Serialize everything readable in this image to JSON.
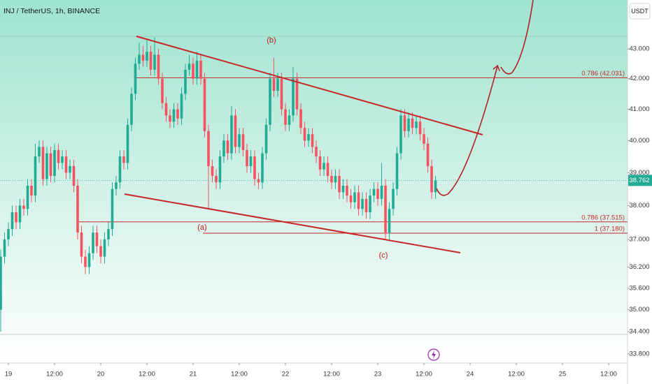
{
  "chart_data": {
    "type": "candlestick",
    "title": "INJ / TetherUS, 1h, BINANCE",
    "currency_button": "USDT",
    "log_scale": true,
    "up_color": "#22ab94",
    "down_color": "#f7525f",
    "x": [
      -2,
      -1,
      0,
      1,
      2,
      3,
      4,
      5,
      6,
      7,
      8,
      9,
      10,
      11,
      12,
      13,
      14,
      15,
      16,
      17,
      18,
      19,
      20,
      21,
      22,
      23,
      24,
      25,
      26,
      27,
      28,
      29,
      30,
      31,
      32,
      33,
      34,
      35,
      36,
      37,
      38,
      39,
      40,
      41,
      42,
      43,
      44,
      45,
      46,
      47,
      48,
      49,
      50,
      51,
      52,
      53,
      54,
      55,
      56,
      57,
      58,
      59,
      60,
      61,
      62,
      63,
      64,
      65,
      66,
      67,
      68,
      69,
      70,
      71,
      72,
      73,
      74,
      75,
      76,
      77,
      78,
      79,
      80,
      81,
      82,
      83,
      84,
      85,
      86,
      87,
      88,
      89,
      90,
      91,
      92,
      93,
      94,
      95,
      96,
      97,
      98,
      99,
      100,
      101,
      102,
      103,
      104,
      105,
      106,
      107,
      108,
      109,
      110,
      111
    ],
    "open": [
      35.0,
      36.5,
      37.0,
      37.3,
      37.8,
      37.5,
      38.0,
      37.9,
      38.6,
      38.3,
      39.5,
      39.8,
      38.8,
      39.6,
      38.9,
      39.7,
      39.3,
      39.5,
      39.0,
      39.2,
      38.6,
      37.2,
      36.5,
      36.2,
      36.6,
      37.2,
      36.8,
      36.5,
      37.0,
      37.3,
      38.5,
      38.7,
      39.5,
      39.3,
      40.5,
      41.5,
      42.5,
      42.8,
      42.6,
      42.9,
      42.3,
      42.8,
      42.0,
      41.2,
      40.8,
      40.6,
      41.0,
      40.7,
      41.5,
      42.3,
      42.5,
      42.0,
      42.6,
      42.0,
      40.3,
      39.2,
      38.9,
      38.7,
      39.5,
      40.0,
      39.6,
      40.8,
      39.8,
      40.2,
      39.7,
      39.2,
      39.5,
      38.8,
      38.7,
      39.6,
      40.5,
      42.0,
      41.6,
      42.0,
      41.0,
      40.5,
      40.8,
      42.0,
      41.0,
      40.4,
      40.0,
      40.2,
      39.8,
      39.5,
      39.1,
      39.3,
      38.9,
      38.7,
      38.9,
      38.4,
      38.6,
      38.3,
      38.1,
      38.4,
      37.9,
      38.2,
      37.8,
      38.3,
      38.5,
      38.2,
      38.6,
      37.2,
      37.9,
      38.5,
      39.6,
      40.8,
      40.3,
      40.7,
      40.4,
      40.6,
      40.2,
      39.9,
      39.2,
      38.4
    ],
    "high": [
      36.7,
      37.2,
      37.5,
      38.0,
      38.0,
      38.2,
      38.2,
      38.8,
      38.8,
      39.9,
      40.0,
      40.0,
      39.8,
      39.8,
      39.9,
      39.9,
      39.7,
      39.7,
      39.4,
      39.4,
      38.8,
      37.4,
      36.7,
      36.8,
      37.4,
      37.4,
      37.0,
      37.2,
      37.5,
      38.7,
      38.9,
      39.7,
      39.7,
      40.7,
      41.7,
      42.7,
      43.2,
      43.1,
      43.3,
      43.1,
      43.4,
      43.0,
      42.2,
      41.4,
      41.0,
      41.2,
      41.2,
      41.7,
      42.5,
      42.8,
      42.7,
      42.9,
      42.8,
      42.2,
      40.5,
      39.4,
      39.1,
      39.7,
      40.2,
      40.2,
      41.1,
      41.0,
      40.4,
      40.4,
      39.9,
      39.7,
      39.7,
      39.0,
      39.8,
      40.7,
      42.2,
      42.7,
      42.2,
      42.2,
      41.2,
      41.0,
      42.4,
      42.2,
      41.2,
      40.6,
      40.4,
      40.4,
      40.0,
      39.7,
      39.5,
      39.5,
      39.1,
      39.1,
      39.1,
      38.8,
      38.8,
      38.5,
      38.6,
      38.6,
      38.4,
      38.4,
      38.5,
      38.7,
      38.7,
      39.3,
      38.8,
      38.1,
      38.7,
      39.8,
      41.0,
      41.0,
      40.9,
      40.9,
      40.8,
      40.8,
      40.4,
      40.1,
      39.4,
      38.9
    ],
    "low": [
      34.4,
      36.3,
      36.8,
      37.1,
      37.3,
      37.3,
      37.7,
      37.7,
      38.1,
      38.1,
      39.3,
      38.6,
      38.6,
      38.7,
      38.7,
      39.1,
      39.1,
      38.8,
      38.8,
      38.4,
      37.0,
      36.3,
      36.0,
      36.0,
      36.4,
      36.6,
      36.3,
      36.3,
      36.8,
      37.1,
      38.3,
      38.5,
      39.1,
      39.1,
      40.3,
      41.3,
      42.3,
      42.4,
      42.4,
      42.1,
      42.1,
      41.8,
      41.0,
      40.6,
      40.4,
      40.4,
      40.5,
      40.5,
      41.3,
      42.1,
      41.8,
      41.8,
      41.8,
      40.1,
      37.9,
      38.7,
      38.5,
      38.5,
      39.3,
      39.4,
      39.4,
      39.6,
      39.6,
      39.5,
      39.0,
      39.0,
      38.6,
      38.5,
      38.5,
      39.4,
      40.3,
      41.4,
      41.4,
      40.8,
      40.3,
      40.3,
      40.6,
      40.8,
      40.2,
      39.8,
      39.8,
      39.6,
      39.3,
      38.9,
      38.9,
      38.7,
      38.5,
      38.5,
      38.2,
      38.2,
      38.1,
      37.9,
      37.9,
      37.7,
      37.7,
      37.6,
      37.6,
      38.1,
      38.0,
      38.0,
      37.0,
      37.0,
      37.7,
      38.3,
      39.4,
      40.1,
      40.1,
      40.2,
      40.2,
      40.0,
      39.7,
      39.0,
      38.2,
      38.2
    ],
    "close": [
      36.5,
      37.0,
      37.3,
      37.8,
      37.5,
      38.0,
      37.9,
      38.6,
      38.3,
      39.5,
      39.8,
      38.8,
      39.6,
      38.9,
      39.7,
      39.3,
      39.5,
      39.0,
      39.2,
      38.6,
      37.2,
      36.5,
      36.2,
      36.6,
      37.2,
      36.8,
      36.5,
      37.0,
      37.3,
      38.5,
      38.7,
      39.5,
      39.3,
      40.5,
      41.5,
      42.5,
      42.8,
      42.6,
      42.9,
      42.3,
      42.8,
      42.0,
      41.2,
      40.8,
      40.6,
      41.0,
      40.7,
      41.5,
      42.3,
      42.5,
      42.0,
      42.6,
      42.0,
      40.3,
      39.2,
      38.9,
      38.7,
      39.5,
      40.0,
      39.6,
      40.8,
      39.8,
      40.2,
      39.7,
      39.2,
      39.5,
      38.8,
      38.7,
      39.6,
      40.5,
      42.0,
      41.6,
      42.0,
      41.0,
      40.5,
      40.8,
      42.0,
      41.0,
      40.4,
      40.0,
      40.2,
      39.8,
      39.5,
      39.1,
      39.3,
      38.9,
      38.7,
      38.9,
      38.4,
      38.6,
      38.3,
      38.1,
      38.4,
      37.9,
      38.2,
      37.8,
      38.3,
      38.5,
      38.2,
      38.6,
      37.2,
      37.9,
      38.5,
      39.6,
      40.8,
      40.3,
      40.7,
      40.4,
      40.6,
      40.2,
      39.9,
      39.2,
      38.4,
      38.76
    ],
    "last_price": 38.762,
    "levels": [
      {
        "label": "0.786 (42.031)",
        "value": 42.031
      },
      {
        "label": "0.786 (37.515)",
        "value": 37.515
      },
      {
        "label": "1 (37.180)",
        "value": 37.18
      }
    ],
    "annotations": [
      "(a)",
      "(b)",
      "(c)"
    ],
    "xlim": [
      -2.18,
      160.9
    ],
    "xticks": [
      {
        "value": 0,
        "label": "19"
      },
      {
        "value": 12,
        "label": "12:00"
      },
      {
        "value": 24,
        "label": "20"
      },
      {
        "value": 36,
        "label": "12:00"
      },
      {
        "value": 48,
        "label": "21"
      },
      {
        "value": 60,
        "label": "12:00"
      },
      {
        "value": 72,
        "label": "22"
      },
      {
        "value": 84,
        "label": "12:00"
      },
      {
        "value": 96,
        "label": "23"
      },
      {
        "value": 108,
        "label": "12:00"
      },
      {
        "value": 120,
        "label": "24"
      },
      {
        "value": 132,
        "label": "12:00"
      },
      {
        "value": 144,
        "label": "25"
      },
      {
        "value": 156,
        "label": "12:00"
      }
    ],
    "ylim": [
      33.56,
      44.69
    ],
    "yticks": [
      {
        "value": 43,
        "label": "43.000"
      },
      {
        "value": 42,
        "label": "42.000"
      },
      {
        "value": 41,
        "label": "41.000"
      },
      {
        "value": 40,
        "label": "40.000"
      },
      {
        "value": 39,
        "label": "39.000"
      },
      {
        "value": 38,
        "label": "38.000"
      },
      {
        "value": 37,
        "label": "37.000"
      },
      {
        "value": 36.2,
        "label": "36.200"
      },
      {
        "value": 35.6,
        "label": "35.600"
      },
      {
        "value": 35,
        "label": "35.000"
      },
      {
        "value": 34.4,
        "label": "34.400"
      },
      {
        "value": 33.8,
        "label": "33.800"
      }
    ]
  }
}
